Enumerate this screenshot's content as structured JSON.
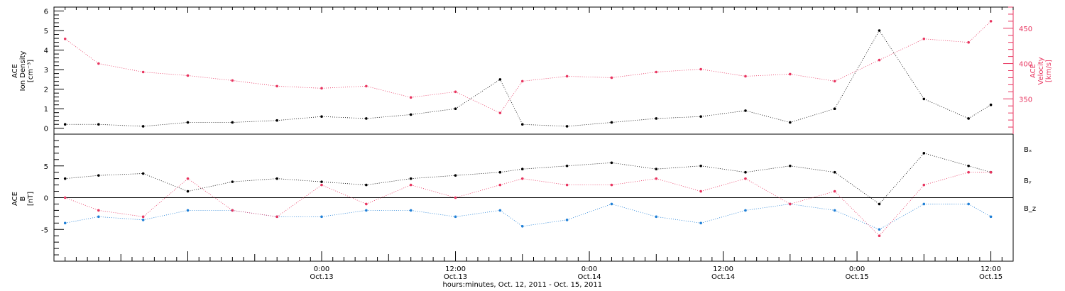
{
  "colors": {
    "black": "#000000",
    "red": "#e8345f",
    "blue": "#1f7fd6"
  },
  "chart_data": [
    {
      "type": "scatter",
      "panel": "top",
      "left_axis_label_lines": [
        "ACE",
        "Ion Density",
        "[cm⁻³]"
      ],
      "right_axis_label_lines": [
        "ACE",
        "Velocity",
        "[km/s]"
      ],
      "x_units": "hours",
      "x_range": [
        -24,
        62
      ],
      "y_left_range": [
        -0.3,
        6.2
      ],
      "y_left_ticks": [
        "0",
        "1",
        "2",
        "3",
        "4",
        "5",
        "6"
      ],
      "y_right_range": [
        300,
        480
      ],
      "y_right_ticks": [
        "350",
        "400",
        "450"
      ],
      "series": [
        {
          "axis": "left",
          "color": "#000000",
          "x": [
            -23,
            -20,
            -16,
            -12,
            -8,
            -4,
            0,
            4,
            8,
            12,
            16,
            18,
            22,
            26,
            30,
            34,
            38,
            42,
            46,
            50,
            54,
            58,
            60
          ],
          "values": [
            0.2,
            0.2,
            0.1,
            0.3,
            0.3,
            0.4,
            0.6,
            0.5,
            0.7,
            1.0,
            2.5,
            0.2,
            0.1,
            0.3,
            0.5,
            0.6,
            0.9,
            0.3,
            1.0,
            5.0,
            1.5,
            0.5,
            1.2
          ]
        },
        {
          "axis": "right",
          "color": "#e8345f",
          "x": [
            -23,
            -20,
            -16,
            -12,
            -8,
            -4,
            0,
            4,
            8,
            12,
            16,
            18,
            22,
            26,
            30,
            34,
            38,
            42,
            46,
            50,
            54,
            58,
            60
          ],
          "values": [
            435,
            400,
            388,
            383,
            376,
            368,
            365,
            368,
            352,
            360,
            330,
            375,
            382,
            380,
            388,
            392,
            382,
            385,
            375,
            405,
            435,
            430,
            460
          ]
        }
      ]
    },
    {
      "type": "scatter",
      "panel": "bottom",
      "left_axis_label_lines": [
        "ACE",
        "B",
        "[nT]"
      ],
      "x_units": "hours",
      "x_range": [
        -24,
        62
      ],
      "y_range": [
        -10,
        10
      ],
      "y_ticks": [
        "-5",
        "0",
        "5"
      ],
      "series": [
        {
          "name": "Bₓ",
          "color": "#000000",
          "x": [
            -23,
            -20,
            -16,
            -12,
            -8,
            -4,
            0,
            4,
            8,
            12,
            16,
            18,
            22,
            26,
            30,
            34,
            38,
            42,
            46,
            50,
            54,
            58,
            60
          ],
          "values": [
            3,
            3.5,
            3.8,
            1,
            2.5,
            3,
            2.5,
            2,
            3,
            3.5,
            4,
            4.5,
            5,
            5.5,
            4.5,
            5,
            4,
            5,
            4,
            -1,
            7,
            5,
            4
          ]
        },
        {
          "name": "Bᵧ",
          "color": "#1f7fd6",
          "x": [
            -23,
            -20,
            -16,
            -12,
            -8,
            -4,
            0,
            4,
            8,
            12,
            16,
            18,
            22,
            26,
            30,
            34,
            38,
            42,
            46,
            50,
            54,
            58,
            60
          ],
          "values": [
            -4,
            -3,
            -3.5,
            -2,
            -2,
            -3,
            -3,
            -2,
            -2,
            -3,
            -2,
            -4.5,
            -3.5,
            -1,
            -3,
            -4,
            -2,
            -1,
            -2,
            -5,
            -1,
            -1,
            -3
          ]
        },
        {
          "name": "B_z",
          "color": "#e8345f",
          "x": [
            -23,
            -20,
            -16,
            -12,
            -8,
            -4,
            0,
            4,
            8,
            12,
            16,
            18,
            22,
            26,
            30,
            34,
            38,
            42,
            46,
            50,
            54,
            58,
            60
          ],
          "values": [
            0,
            -2,
            -3,
            3,
            -2,
            -3,
            2,
            -1,
            2,
            0,
            2,
            3,
            2,
            2,
            3,
            1,
            3,
            -1,
            1,
            -6,
            2,
            4,
            4
          ]
        }
      ]
    }
  ],
  "x_axis": {
    "ticks": [
      {
        "hour": 0,
        "time": "0:00",
        "date": "Oct.13"
      },
      {
        "hour": 12,
        "time": "12:00",
        "date": "Oct.13"
      },
      {
        "hour": 24,
        "time": "0:00",
        "date": "Oct.14"
      },
      {
        "hour": 36,
        "time": "12:00",
        "date": "Oct.14"
      },
      {
        "hour": 48,
        "time": "0:00",
        "date": "Oct.15"
      },
      {
        "hour": 60,
        "time": "12:00",
        "date": "Oct.15"
      }
    ],
    "title": "hours:minutes, Oct. 12, 2011 - Oct. 15, 2011"
  }
}
